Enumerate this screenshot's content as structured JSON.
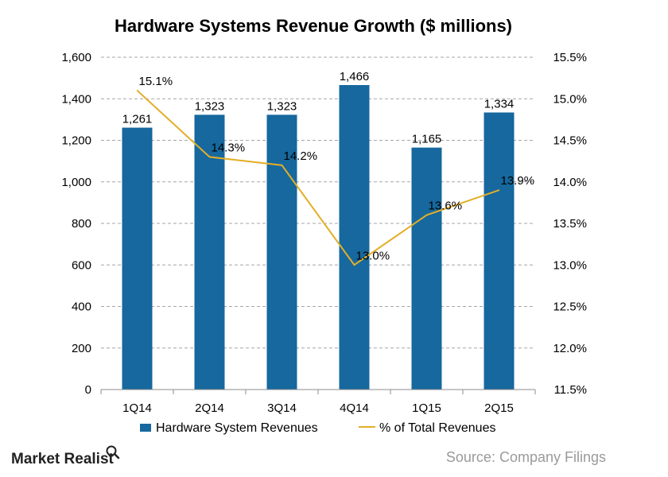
{
  "chart_data": {
    "type": "bar",
    "title": "Hardware Systems Revenue Growth ($ millions)",
    "categories": [
      "1Q14",
      "2Q14",
      "3Q14",
      "4Q14",
      "1Q15",
      "2Q15"
    ],
    "series": [
      {
        "name": "Hardware System Revenues",
        "type": "bar",
        "axis": "left",
        "values": [
          1261,
          1323,
          1323,
          1466,
          1165,
          1334
        ],
        "labels": [
          "1,261",
          "1,323",
          "1,323",
          "1,466",
          "1,165",
          "1,334"
        ],
        "color": "#16689e"
      },
      {
        "name": "% of Total Revenues",
        "type": "line",
        "axis": "right",
        "values": [
          15.1,
          14.3,
          14.2,
          13.0,
          13.6,
          13.9
        ],
        "labels": [
          "15.1%",
          "14.3%",
          "14.2%",
          "13.0%",
          "13.6%",
          "13.9%"
        ],
        "color": "#e3ae28"
      }
    ],
    "y_left": {
      "ylim": [
        0,
        1600
      ],
      "ticks": [
        "0",
        "200",
        "400",
        "600",
        "800",
        "1,000",
        "1,200",
        "1,400",
        "1,600"
      ]
    },
    "y_right": {
      "ylim": [
        11.5,
        15.5
      ],
      "ticks": [
        "11.5%",
        "12.0%",
        "12.5%",
        "13.0%",
        "13.5%",
        "14.0%",
        "14.5%",
        "15.0%",
        "15.5%"
      ]
    },
    "grid": "horizontal dashed",
    "legend": "bottom"
  },
  "branding": {
    "logo_text": "Market Realist",
    "source": "Source: Company Filings"
  },
  "colors": {
    "bar": "#16689e",
    "line": "#e3ae28",
    "grid": "#a6a6a6",
    "source_text": "#9a9a9a"
  }
}
